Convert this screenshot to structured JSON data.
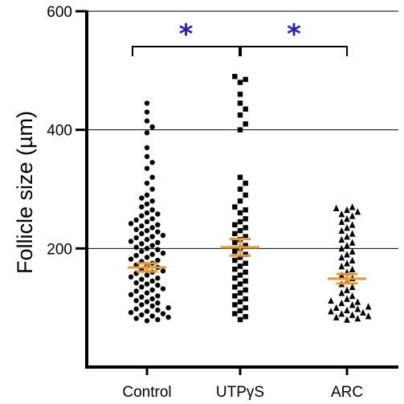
{
  "chart_data": {
    "type": "scatter",
    "subtype": "dot-plot",
    "ylabel": "Follicle size (µm)",
    "xlabel": "",
    "ylim": [
      0,
      600
    ],
    "yticks": [
      200,
      400,
      600
    ],
    "grid": "horizontal at 200, 400, 600",
    "categories": [
      "Control",
      "UTPγS",
      "ARC"
    ],
    "series": [
      {
        "category": "Control",
        "marker": "circle",
        "mean": 168,
        "sem": 7,
        "values": [
          445,
          430,
          415,
          405,
          395,
          370,
          355,
          345,
          335,
          320,
          310,
          300,
          290,
          285,
          280,
          275,
          270,
          265,
          260,
          258,
          255,
          250,
          248,
          245,
          242,
          240,
          238,
          235,
          232,
          230,
          228,
          225,
          222,
          220,
          218,
          215,
          212,
          210,
          208,
          205,
          202,
          200,
          198,
          195,
          192,
          190,
          188,
          185,
          182,
          180,
          178,
          175,
          172,
          170,
          168,
          165,
          162,
          160,
          158,
          155,
          152,
          150,
          148,
          145,
          142,
          140,
          138,
          135,
          132,
          130,
          128,
          125,
          122,
          120,
          118,
          115,
          112,
          110,
          108,
          105,
          103,
          100,
          98,
          96,
          94,
          92,
          90,
          88,
          86,
          84,
          82,
          80,
          78
        ]
      },
      {
        "category": "UTPγS",
        "marker": "square",
        "mean": 202,
        "sem": 14,
        "values": [
          490,
          485,
          480,
          460,
          445,
          435,
          425,
          410,
          400,
          320,
          310,
          300,
          290,
          280,
          270,
          265,
          260,
          250,
          245,
          240,
          235,
          230,
          225,
          220,
          215,
          210,
          205,
          200,
          195,
          190,
          185,
          180,
          175,
          170,
          165,
          160,
          155,
          150,
          145,
          140,
          135,
          130,
          125,
          120,
          115,
          110,
          105,
          100,
          95,
          90,
          85,
          80
        ]
      },
      {
        "category": "ARC",
        "marker": "triangle",
        "mean": 149,
        "sem": 8,
        "values": [
          270,
          268,
          265,
          262,
          258,
          255,
          250,
          245,
          240,
          235,
          230,
          225,
          220,
          215,
          210,
          205,
          200,
          195,
          190,
          185,
          180,
          175,
          170,
          165,
          160,
          155,
          150,
          145,
          140,
          135,
          130,
          125,
          120,
          115,
          112,
          110,
          108,
          105,
          102,
          100,
          98,
          96,
          94,
          92,
          90,
          88,
          86,
          84,
          82,
          80
        ]
      }
    ],
    "annotations": [
      {
        "type": "significance",
        "from": "Control",
        "to": "UTPγS",
        "label": "*"
      },
      {
        "type": "significance",
        "from": "UTPγS",
        "to": "ARC",
        "label": "*"
      }
    ],
    "colors": {
      "points": "#000000",
      "mean_sem": "#f0961e",
      "significance": "#1e1ec8",
      "axis": "#000000"
    }
  }
}
